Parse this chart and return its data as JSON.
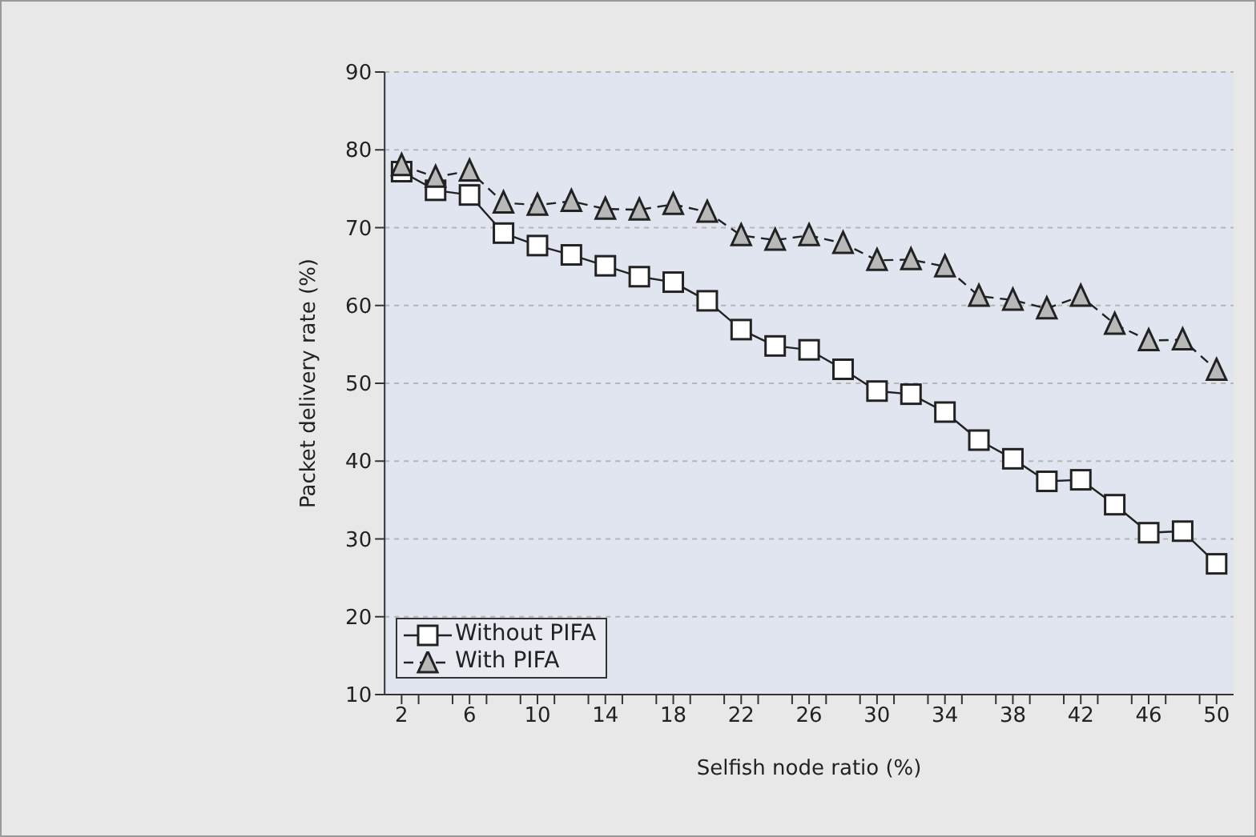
{
  "chart_data": {
    "type": "line",
    "xlabel": "Selfish node ratio (%)",
    "ylabel": "Packet delivery rate (%)",
    "x": [
      2,
      4,
      6,
      8,
      10,
      12,
      14,
      16,
      18,
      20,
      22,
      24,
      26,
      28,
      30,
      32,
      34,
      36,
      38,
      40,
      42,
      44,
      46,
      48,
      50
    ],
    "xlim": [
      1,
      51
    ],
    "xticks": [
      2,
      {
        "value": 3,
        "label": null
      },
      {
        "value": 5,
        "label": null
      },
      6,
      {
        "value": 7,
        "label": null
      },
      {
        "value": 9,
        "label": null
      },
      10,
      {
        "value": 11,
        "label": null
      },
      {
        "value": 13,
        "label": null
      },
      14,
      {
        "value": 15,
        "label": null
      },
      {
        "value": 17,
        "label": null
      },
      18,
      {
        "value": 19,
        "label": null
      },
      {
        "value": 21,
        "label": null
      },
      22,
      {
        "value": 23,
        "label": null
      },
      {
        "value": 25,
        "label": null
      },
      26,
      {
        "value": 27,
        "label": null
      },
      {
        "value": 29,
        "label": null
      },
      30,
      {
        "value": 31,
        "label": null
      },
      {
        "value": 33,
        "label": null
      },
      34,
      {
        "value": 35,
        "label": null
      },
      {
        "value": 37,
        "label": null
      },
      38,
      {
        "value": 39,
        "label": null
      },
      {
        "value": 41,
        "label": null
      },
      42,
      {
        "value": 43,
        "label": null
      },
      {
        "value": 45,
        "label": null
      },
      46,
      {
        "value": 47,
        "label": null
      },
      {
        "value": 49,
        "label": null
      },
      50
    ],
    "ylim": [
      10,
      90
    ],
    "yticks": [
      10,
      20,
      30,
      40,
      50,
      60,
      70,
      80,
      90
    ],
    "grid": "y",
    "legend": "bottom left",
    "series": [
      {
        "name": "Without PIFA",
        "color": "#222222",
        "marker": "square",
        "line_style": "solid",
        "values": [
          77.2,
          74.8,
          74.2,
          69.3,
          67.7,
          66.5,
          65.1,
          63.7,
          63,
          60.6,
          56.9,
          54.8,
          54.3,
          51.8,
          49,
          48.6,
          46.3,
          42.7,
          40.3,
          37.4,
          37.6,
          34.4,
          30.8,
          31,
          26.8
        ]
      },
      {
        "name": "With PIFA",
        "color": "#222222",
        "marker": "triangle",
        "line_style": "dashed",
        "values": [
          78,
          76.5,
          77.3,
          73.2,
          72.9,
          73.4,
          72.4,
          72.3,
          73,
          72,
          69,
          68.4,
          69,
          68,
          65.8,
          65.9,
          65,
          61.2,
          60.7,
          59.6,
          61.2,
          57.6,
          55.5,
          55.6,
          51.7
        ]
      }
    ]
  }
}
